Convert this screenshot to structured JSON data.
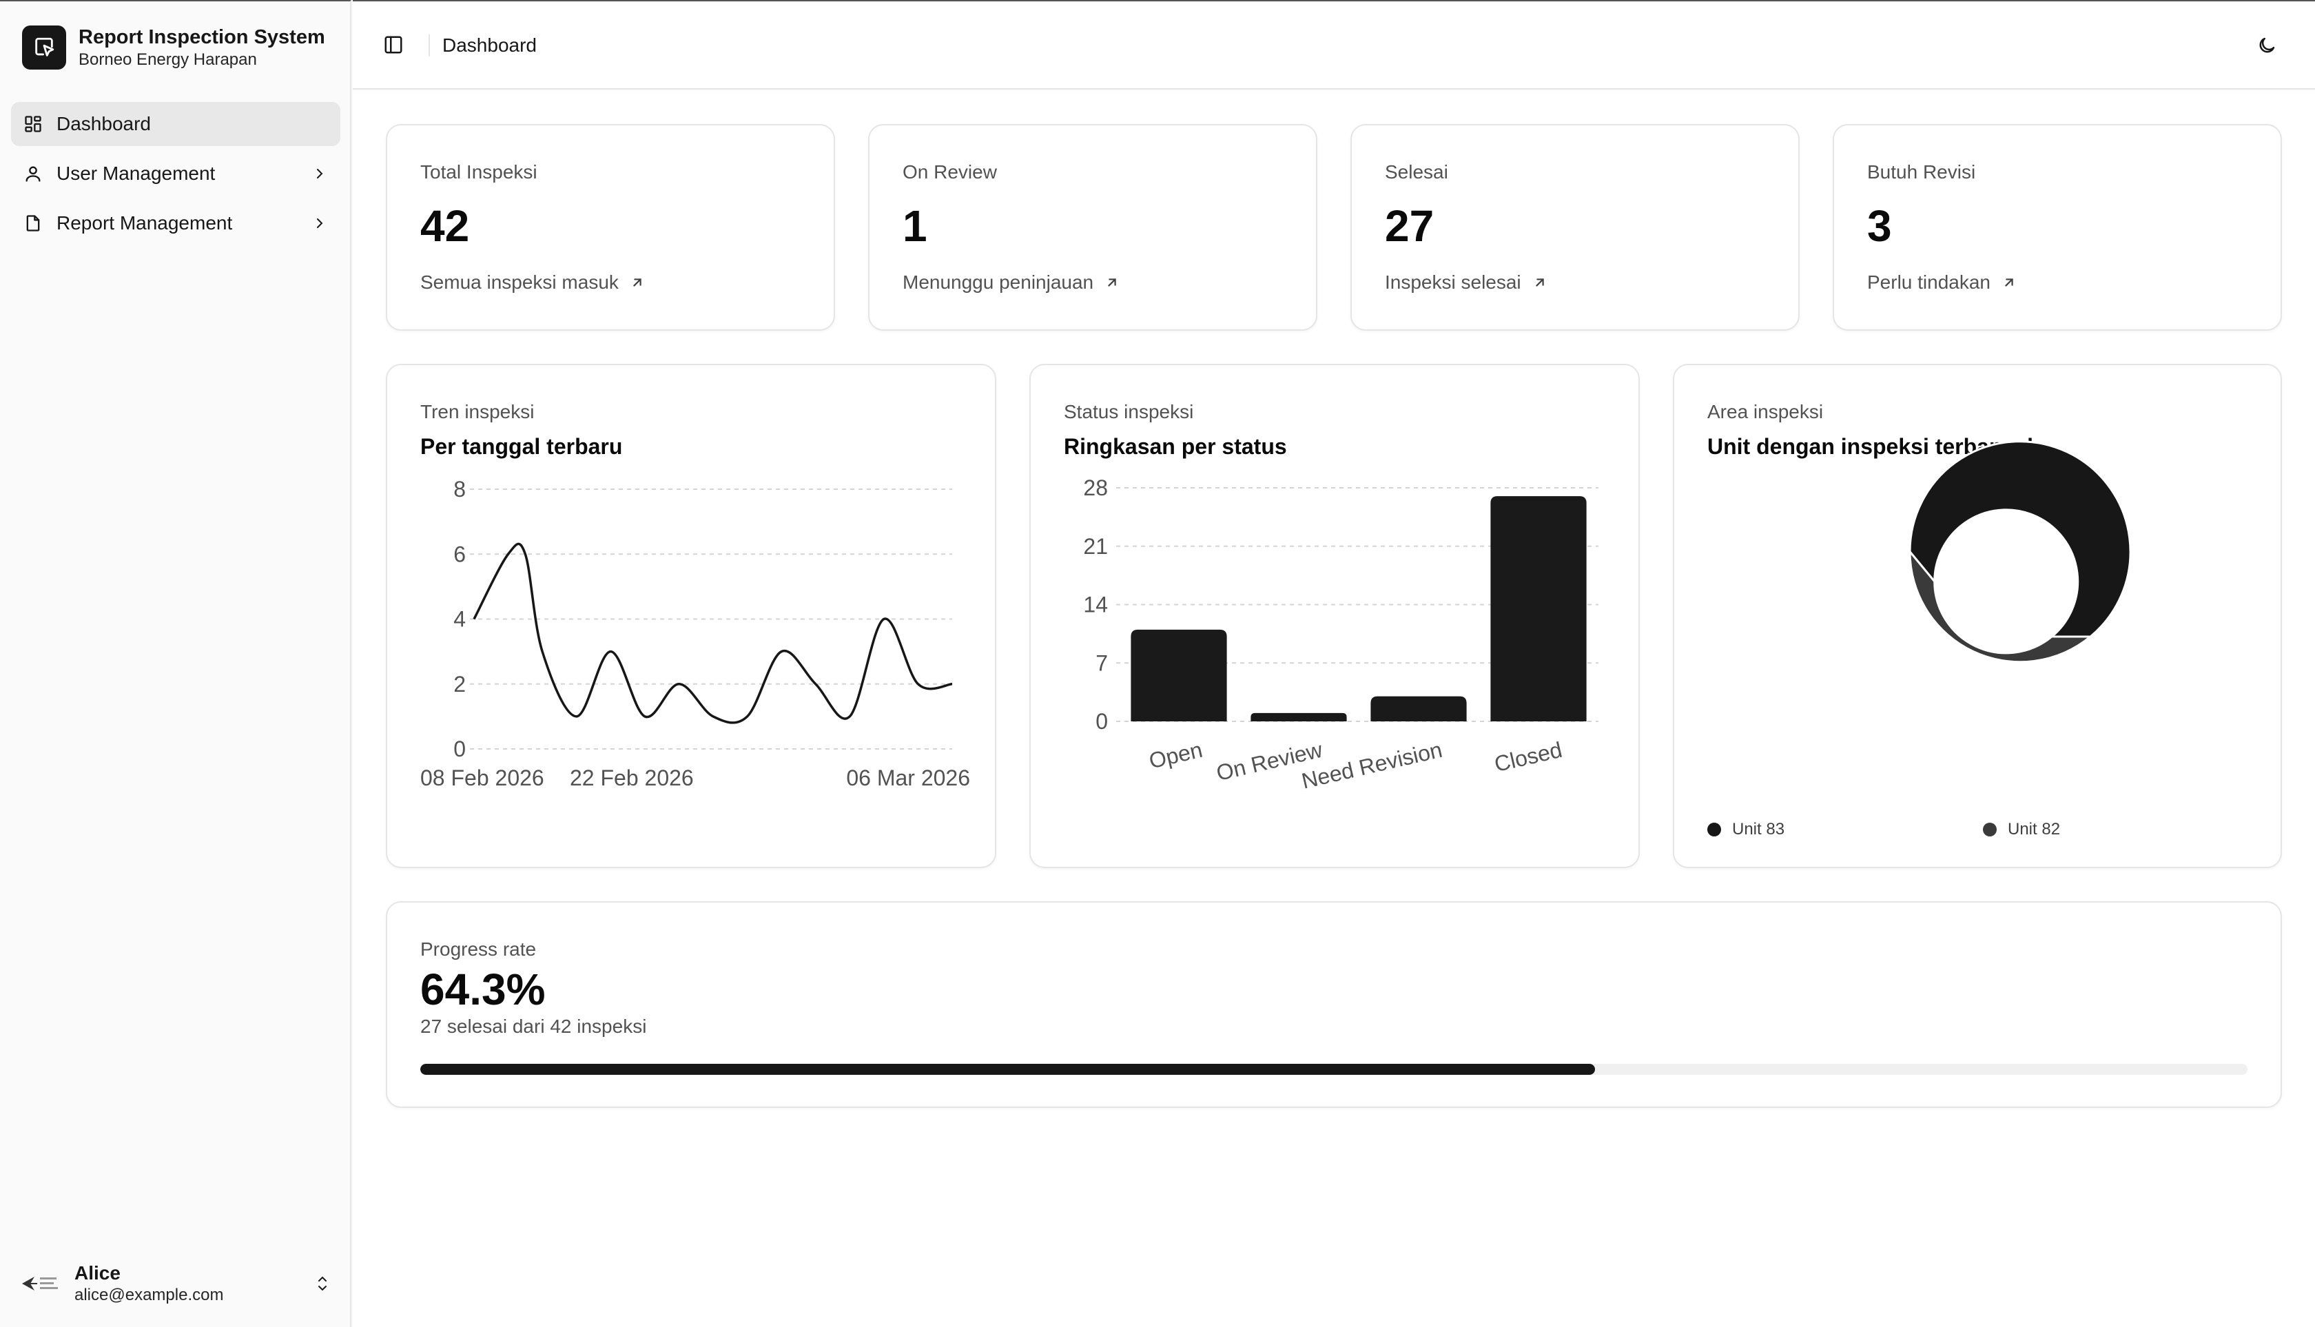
{
  "app": {
    "title": "Report Inspection System",
    "subtitle": "Borneo Energy Harapan"
  },
  "sidebar": {
    "items": [
      {
        "label": "Dashboard",
        "icon": "dashboard-icon",
        "active": true
      },
      {
        "label": "User Management",
        "icon": "user-icon",
        "active": false
      },
      {
        "label": "Report Management",
        "icon": "file-icon",
        "active": false
      }
    ]
  },
  "user": {
    "name": "Alice",
    "email": "alice@example.com"
  },
  "header": {
    "breadcrumb": "Dashboard"
  },
  "stats": [
    {
      "label": "Total Inspeksi",
      "value": "42",
      "foot": "Semua inspeksi masuk"
    },
    {
      "label": "On Review",
      "value": "1",
      "foot": "Menunggu peninjauan"
    },
    {
      "label": "Selesai",
      "value": "27",
      "foot": "Inspeksi selesai"
    },
    {
      "label": "Butuh Revisi",
      "value": "3",
      "foot": "Perlu tindakan"
    }
  ],
  "charts": {
    "trend": {
      "eyebrow": "Tren inspeksi",
      "title": "Per tanggal terbaru"
    },
    "status": {
      "eyebrow": "Status inspeksi",
      "title": "Ringkasan per status"
    },
    "area": {
      "eyebrow": "Area inspeksi",
      "title": "Unit dengan inspeksi terbanyak"
    }
  },
  "chart_data": [
    {
      "type": "line",
      "title": "Per tanggal terbaru",
      "x": [
        "2026-02-08",
        "2026-02-10",
        "2026-02-11",
        "2026-02-12",
        "2026-02-14",
        "2026-02-16",
        "2026-02-18",
        "2026-02-20",
        "2026-02-22",
        "2026-02-24",
        "2026-02-26",
        "2026-02-28",
        "2026-03-02",
        "2026-03-04",
        "2026-03-06",
        "2026-03-08"
      ],
      "x_tick_labels": [
        "08 Feb 2026",
        "22 Feb 2026",
        "06 Mar 2026"
      ],
      "values": [
        4,
        6,
        6,
        3,
        1,
        3,
        1,
        2,
        1,
        1,
        3,
        2,
        1,
        4,
        2,
        2
      ],
      "y_ticks": [
        0,
        2,
        4,
        6,
        8
      ],
      "ylim": [
        0,
        8
      ],
      "grid": "horizontal dashed"
    },
    {
      "type": "bar",
      "title": "Ringkasan per status",
      "categories": [
        "Open",
        "On Review",
        "Need Revision",
        "Closed"
      ],
      "values": [
        11,
        1,
        3,
        27
      ],
      "y_ticks": [
        0,
        7,
        14,
        21,
        28
      ],
      "ylim": [
        0,
        28
      ],
      "grid": "horizontal dashed"
    },
    {
      "type": "pie",
      "title": "Unit dengan inspeksi terbanyak",
      "categories": [
        "Unit 83",
        "Unit 82"
      ],
      "values": [
        64,
        36
      ],
      "colors": [
        "#171717",
        "#3a3a3a"
      ],
      "legend": "bottom"
    }
  ],
  "progress": {
    "label": "Progress rate",
    "value": "64.3%",
    "subtitle": "27 selesai dari 42 inspeksi",
    "fraction": 0.643
  },
  "colors": {
    "accent": "#171717",
    "muted": "#525252",
    "border": "#e5e5e5"
  }
}
